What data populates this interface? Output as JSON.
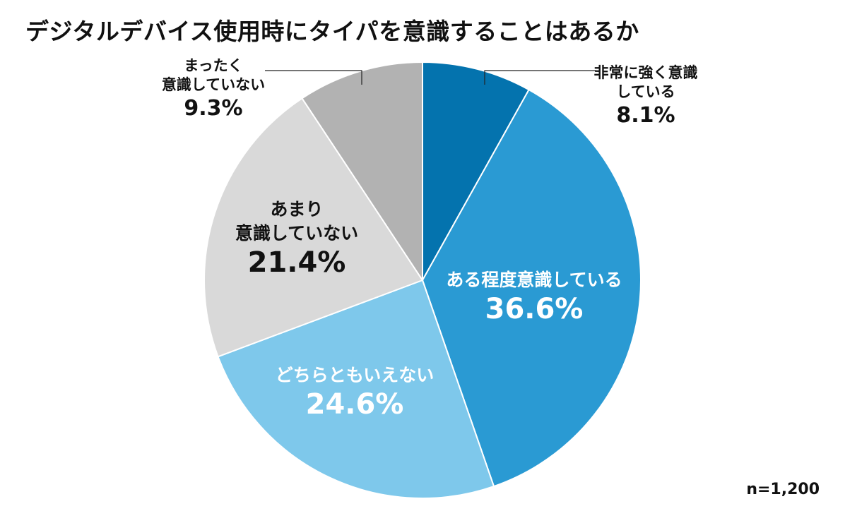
{
  "chart_data": {
    "type": "pie",
    "title": "デジタルデバイス使用時にタイパを意識することはあるか",
    "note": "n=1,200",
    "start": "12 o'clock",
    "direction": "clockwise",
    "unit": "%",
    "slices": [
      {
        "label_lines": [
          "非常に強く意識",
          "している"
        ],
        "value": 8.1,
        "value_text": "8.1%",
        "color": "#0473AE",
        "text_color": "#111111",
        "label_outside": true
      },
      {
        "label_lines": [
          "ある程度意識している"
        ],
        "value": 36.6,
        "value_text": "36.6%",
        "color": "#2A9AD3",
        "text_color": "#ffffff",
        "label_outside": false
      },
      {
        "label_lines": [
          "どちらともいえない"
        ],
        "value": 24.6,
        "value_text": "24.6%",
        "color": "#7EC8EB",
        "text_color": "#ffffff",
        "label_outside": false
      },
      {
        "label_lines": [
          "あまり",
          "意識していない"
        ],
        "value": 21.4,
        "value_text": "21.4%",
        "color": "#D9D9D9",
        "text_color": "#111111",
        "label_outside": false
      },
      {
        "label_lines": [
          "まったく",
          "意識していない"
        ],
        "value": 9.3,
        "value_text": "9.3%",
        "color": "#B2B2B2",
        "text_color": "#111111",
        "label_outside": true
      }
    ]
  }
}
